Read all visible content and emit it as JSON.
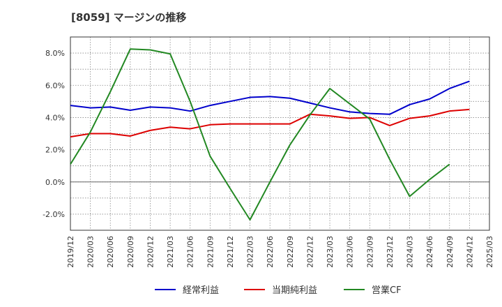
{
  "chart_data": {
    "type": "line",
    "title": "[8059]  マージンの推移",
    "xlabel": "",
    "ylabel": "",
    "ylim": [
      -3,
      9
    ],
    "y_ticks": [
      -2,
      0,
      2,
      4,
      6,
      8
    ],
    "y_tick_labels": [
      "-2.0%",
      "0.0%",
      "2.0%",
      "4.0%",
      "6.0%",
      "8.0%"
    ],
    "categories": [
      "2019/12",
      "2020/03",
      "2020/06",
      "2020/09",
      "2020/12",
      "2021/03",
      "2021/06",
      "2021/09",
      "2021/12",
      "2022/03",
      "2022/06",
      "2022/09",
      "2022/12",
      "2023/03",
      "2023/06",
      "2023/09",
      "2023/12",
      "2024/03",
      "2024/06",
      "2024/09",
      "2024/12",
      "2025/03"
    ],
    "grid": true,
    "legend_position": "bottom",
    "series": [
      {
        "name": "経常利益",
        "color": "#0000cc",
        "values": [
          4.75,
          4.6,
          4.65,
          4.45,
          4.65,
          4.6,
          4.4,
          4.75,
          5.0,
          5.25,
          5.3,
          5.2,
          4.9,
          4.6,
          4.35,
          4.25,
          4.2,
          4.8,
          5.15,
          5.8,
          6.25,
          null
        ]
      },
      {
        "name": "当期純利益",
        "color": "#dd0000",
        "values": [
          2.8,
          3.0,
          3.0,
          2.85,
          3.2,
          3.4,
          3.3,
          3.55,
          3.6,
          3.6,
          3.6,
          3.6,
          4.2,
          4.1,
          3.95,
          4.0,
          3.5,
          3.95,
          4.1,
          4.4,
          4.5,
          null
        ]
      },
      {
        "name": "営業CF",
        "color": "#228822",
        "values": [
          1.1,
          3.1,
          5.6,
          8.25,
          8.2,
          7.95,
          5.0,
          1.6,
          -0.4,
          -2.35,
          0.0,
          2.3,
          4.15,
          5.8,
          4.85,
          3.9,
          1.4,
          -0.9,
          0.15,
          1.1,
          null,
          null
        ]
      }
    ]
  }
}
